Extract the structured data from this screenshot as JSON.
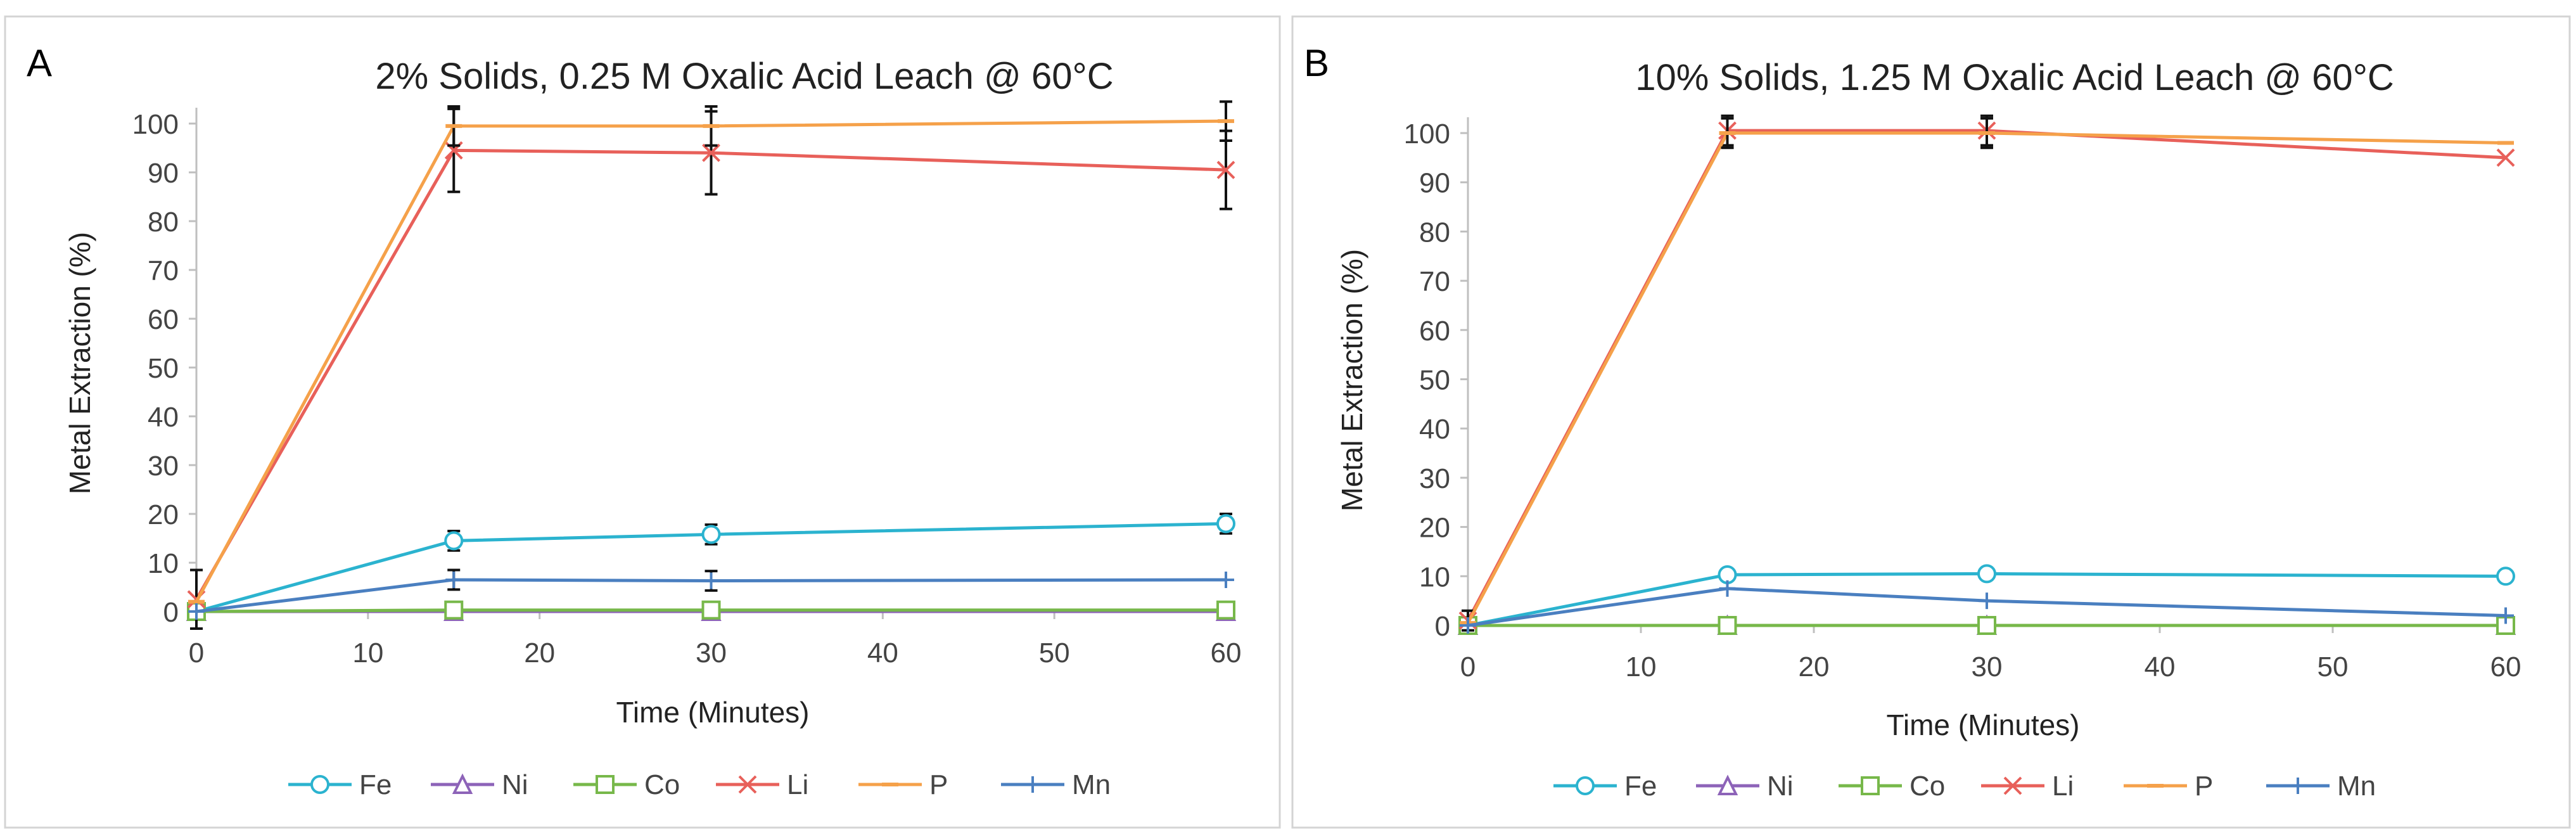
{
  "chart_data": [
    {
      "panel_letter": "A",
      "type": "line",
      "title": "2% Solids, 0.25 M Oxalic Acid Leach @ 60°C",
      "xlabel": "Time (Minutes)",
      "ylabel": "Metal Extraction (%)",
      "xlim": [
        0,
        60
      ],
      "ylim": [
        0,
        100
      ],
      "x_ticks": [
        "0",
        "10",
        "20",
        "30",
        "40",
        "50",
        "60"
      ],
      "y_ticks": [
        "0",
        "10",
        "20",
        "30",
        "40",
        "50",
        "60",
        "70",
        "80",
        "90",
        "100"
      ],
      "x": [
        0,
        15,
        30,
        60
      ],
      "series": [
        {
          "name": "Fe",
          "marker": "circle",
          "color": "#2bb3cf",
          "values": [
            0,
            14.5,
            15.8,
            18
          ],
          "errors": [
            0,
            2,
            2,
            2
          ]
        },
        {
          "name": "Ni",
          "marker": "triangle",
          "color": "#8d63b8",
          "values": [
            0,
            0,
            0,
            0
          ],
          "errors": [
            0,
            0,
            0,
            0
          ]
        },
        {
          "name": "Co",
          "marker": "square",
          "color": "#77b84a",
          "values": [
            0,
            0.3,
            0.3,
            0.3
          ],
          "errors": [
            0,
            0,
            0,
            0
          ]
        },
        {
          "name": "Li",
          "marker": "x",
          "color": "#e8605a",
          "values": [
            2.5,
            94.5,
            94,
            90.5
          ],
          "errors": [
            6,
            8.5,
            8.5,
            8
          ]
        },
        {
          "name": "P",
          "marker": "dash",
          "color": "#f5a14a",
          "values": [
            2,
            99.5,
            99.5,
            100.5
          ],
          "errors": [
            0,
            4,
            4,
            4
          ]
        },
        {
          "name": "Mn",
          "marker": "plus",
          "color": "#4a7fc0",
          "values": [
            0,
            6.5,
            6.3,
            6.5
          ],
          "errors": [
            0,
            2,
            2,
            0
          ]
        }
      ]
    },
    {
      "panel_letter": "B",
      "type": "line",
      "title": "10% Solids, 1.25 M Oxalic Acid Leach @ 60°C",
      "xlabel": "Time (Minutes)",
      "ylabel": "Metal Extraction (%)",
      "xlim": [
        0,
        60
      ],
      "ylim": [
        0,
        100
      ],
      "x_ticks": [
        "0",
        "10",
        "20",
        "30",
        "40",
        "50",
        "60"
      ],
      "y_ticks": [
        "0",
        "10",
        "20",
        "30",
        "40",
        "50",
        "60",
        "70",
        "80",
        "90",
        "100"
      ],
      "x": [
        0,
        15,
        30,
        60
      ],
      "series": [
        {
          "name": "Fe",
          "marker": "circle",
          "color": "#2bb3cf",
          "values": [
            0,
            10.3,
            10.5,
            10
          ],
          "errors": [
            0,
            0,
            0,
            0
          ]
        },
        {
          "name": "Ni",
          "marker": "triangle",
          "color": "#8d63b8",
          "values": [
            0,
            0,
            0,
            0
          ],
          "errors": [
            0,
            0,
            0,
            0
          ]
        },
        {
          "name": "Co",
          "marker": "square",
          "color": "#77b84a",
          "values": [
            0,
            0,
            0,
            0
          ],
          "errors": [
            0,
            0,
            0,
            0
          ]
        },
        {
          "name": "Li",
          "marker": "x",
          "color": "#e8605a",
          "values": [
            1,
            100.5,
            100.5,
            95
          ],
          "errors": [
            2,
            3,
            3,
            0
          ]
        },
        {
          "name": "P",
          "marker": "dash",
          "color": "#f5a14a",
          "values": [
            0.5,
            100,
            100,
            98
          ],
          "errors": [
            0,
            3,
            3,
            0
          ]
        },
        {
          "name": "Mn",
          "marker": "plus",
          "color": "#4a7fc0",
          "values": [
            0,
            7.5,
            5,
            2
          ],
          "errors": [
            0,
            0,
            0,
            0
          ]
        }
      ]
    }
  ]
}
